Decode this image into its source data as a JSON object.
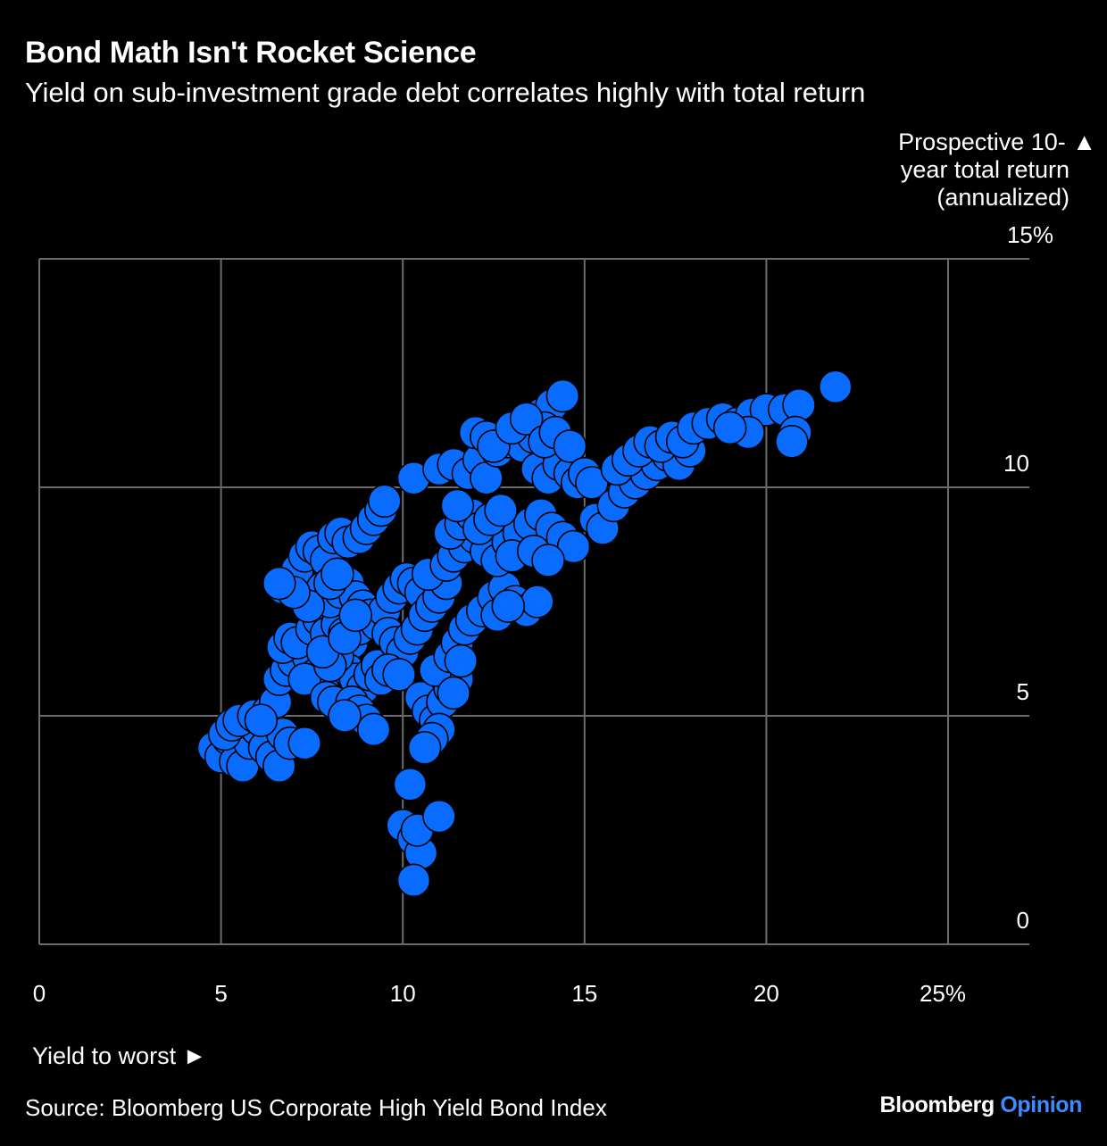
{
  "title": "Bond Math Isn't Rocket Science",
  "subtitle": "Yield on sub-investment grade debt correlates highly with total return",
  "y_axis_label_line1": "Prospective 10- ▲",
  "y_axis_label_line2": "year total return",
  "y_axis_label_line3": "(annualized)",
  "x_axis_label": "Yield to worst ►",
  "source": "Source: Bloomberg US Corporate High Yield Bond Index",
  "brand": {
    "name": "Bloomberg",
    "section": "Opinion"
  },
  "colors": {
    "background": "#000000",
    "point": "#0a6cff",
    "grid": "#6b6b6b",
    "brand_accent": "#3d8bff"
  },
  "chart_data": {
    "type": "scatter",
    "title": "Bond Math Isn't Rocket Science",
    "subtitle": "Yield on sub-investment grade debt correlates highly with total return",
    "xlabel": "Yield to worst",
    "ylabel": "Prospective 10-year total return (annualized)",
    "xlim": [
      0,
      25
    ],
    "ylim": [
      0,
      15
    ],
    "x_ticks": [
      "0",
      "5",
      "10",
      "15",
      "20",
      "25%"
    ],
    "y_ticks": [
      "0",
      "5",
      "10",
      "15%"
    ],
    "grid": true,
    "points": [
      [
        4.8,
        4.3
      ],
      [
        5.0,
        4.1
      ],
      [
        5.2,
        4.5
      ],
      [
        5.4,
        4.0
      ],
      [
        5.6,
        3.9
      ],
      [
        5.8,
        4.4
      ],
      [
        6.0,
        4.7
      ],
      [
        6.2,
        4.3
      ],
      [
        6.4,
        4.1
      ],
      [
        6.6,
        3.9
      ],
      [
        5.1,
        4.6
      ],
      [
        5.3,
        4.8
      ],
      [
        5.5,
        4.9
      ],
      [
        5.9,
        5.0
      ],
      [
        6.3,
        5.1
      ],
      [
        6.5,
        5.3
      ],
      [
        6.7,
        4.6
      ],
      [
        6.9,
        4.4
      ],
      [
        7.3,
        4.4
      ],
      [
        6.1,
        4.9
      ],
      [
        6.6,
        5.8
      ],
      [
        6.8,
        6.0
      ],
      [
        7.0,
        6.2
      ],
      [
        7.2,
        6.5
      ],
      [
        7.4,
        6.3
      ],
      [
        7.6,
        5.9
      ],
      [
        7.8,
        5.6
      ],
      [
        7.3,
        5.8
      ],
      [
        7.9,
        5.4
      ],
      [
        8.1,
        5.3
      ],
      [
        6.7,
        6.5
      ],
      [
        6.9,
        6.7
      ],
      [
        7.1,
        6.6
      ],
      [
        7.5,
        6.9
      ],
      [
        7.7,
        7.1
      ],
      [
        7.9,
        6.8
      ],
      [
        8.2,
        7.0
      ],
      [
        8.4,
        6.8
      ],
      [
        8.6,
        6.6
      ],
      [
        8.8,
        6.9
      ],
      [
        8.5,
        6.0
      ],
      [
        8.7,
        5.8
      ],
      [
        8.9,
        5.6
      ],
      [
        9.1,
        5.9
      ],
      [
        9.3,
        6.1
      ],
      [
        8.6,
        5.3
      ],
      [
        8.8,
        5.1
      ],
      [
        9.0,
        4.9
      ],
      [
        9.2,
        4.7
      ],
      [
        8.4,
        5.0
      ],
      [
        6.7,
        7.8
      ],
      [
        6.9,
        7.9
      ],
      [
        7.1,
        8.2
      ],
      [
        7.3,
        8.5
      ],
      [
        7.5,
        8.7
      ],
      [
        7.7,
        8.6
      ],
      [
        7.9,
        8.4
      ],
      [
        8.1,
        8.9
      ],
      [
        8.3,
        9.0
      ],
      [
        8.5,
        8.8
      ],
      [
        8.8,
        8.9
      ],
      [
        9.0,
        9.1
      ],
      [
        9.2,
        9.3
      ],
      [
        9.4,
        9.5
      ],
      [
        9.5,
        9.7
      ],
      [
        7.6,
        7.6
      ],
      [
        7.8,
        7.8
      ],
      [
        8.0,
        7.5
      ],
      [
        8.3,
        7.7
      ],
      [
        8.5,
        7.9
      ],
      [
        8.7,
        7.6
      ],
      [
        8.9,
        7.4
      ],
      [
        9.1,
        7.2
      ],
      [
        9.3,
        7.0
      ],
      [
        9.5,
        7.3
      ],
      [
        9.7,
        7.6
      ],
      [
        9.9,
        7.8
      ],
      [
        10.1,
        8.0
      ],
      [
        10.3,
        7.9
      ],
      [
        10.5,
        7.7
      ],
      [
        9.6,
        6.8
      ],
      [
        9.8,
        6.6
      ],
      [
        10.0,
        6.4
      ],
      [
        10.2,
        6.7
      ],
      [
        10.4,
        6.9
      ],
      [
        10.6,
        7.2
      ],
      [
        10.8,
        7.4
      ],
      [
        11.0,
        7.6
      ],
      [
        11.2,
        7.9
      ],
      [
        10.7,
        8.1
      ],
      [
        9.4,
        5.8
      ],
      [
        9.6,
        6.0
      ],
      [
        9.9,
        5.9
      ],
      [
        8.2,
        6.3
      ],
      [
        8.0,
        6.1
      ],
      [
        7.8,
        6.4
      ],
      [
        8.4,
        6.7
      ],
      [
        7.4,
        7.4
      ],
      [
        7.0,
        7.7
      ],
      [
        6.6,
        7.9
      ],
      [
        10.5,
        5.4
      ],
      [
        10.7,
        5.1
      ],
      [
        10.9,
        4.9
      ],
      [
        11.1,
        5.3
      ],
      [
        11.3,
        5.6
      ],
      [
        11.5,
        5.8
      ],
      [
        11.0,
        4.7
      ],
      [
        10.8,
        4.5
      ],
      [
        10.6,
        4.3
      ],
      [
        10.9,
        6.0
      ],
      [
        11.3,
        6.3
      ],
      [
        11.5,
        6.6
      ],
      [
        11.7,
        6.9
      ],
      [
        11.9,
        7.1
      ],
      [
        11.6,
        6.2
      ],
      [
        11.4,
        5.5
      ],
      [
        12.2,
        7.3
      ],
      [
        12.5,
        7.6
      ],
      [
        12.8,
        7.8
      ],
      [
        13.1,
        7.5
      ],
      [
        13.4,
        7.3
      ],
      [
        13.7,
        7.5
      ],
      [
        12.6,
        7.2
      ],
      [
        12.9,
        7.4
      ],
      [
        11.2,
        8.3
      ],
      [
        11.4,
        8.5
      ],
      [
        11.7,
        8.7
      ],
      [
        12.0,
        8.9
      ],
      [
        12.3,
        8.6
      ],
      [
        12.6,
        8.4
      ],
      [
        12.9,
        8.8
      ],
      [
        13.2,
        9.0
      ],
      [
        13.5,
        9.2
      ],
      [
        13.8,
        9.4
      ],
      [
        14.1,
        9.1
      ],
      [
        14.4,
        8.9
      ],
      [
        14.7,
        8.7
      ],
      [
        13.0,
        8.5
      ],
      [
        13.6,
        8.6
      ],
      [
        14.0,
        8.4
      ],
      [
        11.3,
        9.0
      ],
      [
        11.6,
        9.2
      ],
      [
        11.9,
        9.4
      ],
      [
        12.1,
        9.1
      ],
      [
        12.4,
        9.3
      ],
      [
        12.7,
        9.5
      ],
      [
        11.5,
        9.6
      ],
      [
        10.3,
        10.2
      ],
      [
        11.0,
        10.4
      ],
      [
        11.4,
        10.5
      ],
      [
        11.8,
        10.3
      ],
      [
        12.1,
        10.6
      ],
      [
        12.3,
        10.2
      ],
      [
        12.6,
        10.8
      ],
      [
        12.9,
        11.0
      ],
      [
        13.2,
        11.2
      ],
      [
        13.5,
        11.4
      ],
      [
        13.8,
        11.6
      ],
      [
        14.1,
        11.8
      ],
      [
        14.4,
        12.0
      ],
      [
        13.3,
        10.9
      ],
      [
        13.6,
        11.1
      ],
      [
        13.9,
        11.3
      ],
      [
        14.2,
        10.8
      ],
      [
        14.5,
        10.6
      ],
      [
        13.7,
        10.4
      ],
      [
        14.0,
        10.2
      ],
      [
        14.3,
        10.5
      ],
      [
        14.6,
        10.3
      ],
      [
        14.8,
        10.1
      ],
      [
        12.0,
        11.2
      ],
      [
        12.3,
        11.1
      ],
      [
        12.5,
        10.9
      ],
      [
        13.0,
        11.3
      ],
      [
        13.4,
        11.5
      ],
      [
        13.9,
        11.0
      ],
      [
        14.2,
        11.2
      ],
      [
        14.6,
        10.9
      ],
      [
        15.0,
        10.3
      ],
      [
        15.2,
        10.1
      ],
      [
        15.3,
        9.3
      ],
      [
        15.5,
        9.1
      ],
      [
        15.8,
        9.6
      ],
      [
        16.1,
        9.9
      ],
      [
        16.4,
        10.1
      ],
      [
        16.7,
        10.3
      ],
      [
        17.0,
        10.5
      ],
      [
        17.3,
        10.7
      ],
      [
        17.6,
        10.5
      ],
      [
        17.9,
        10.8
      ],
      [
        15.9,
        10.4
      ],
      [
        16.2,
        10.6
      ],
      [
        16.5,
        10.8
      ],
      [
        16.8,
        11.0
      ],
      [
        17.1,
        10.9
      ],
      [
        17.4,
        11.1
      ],
      [
        17.7,
        11.0
      ],
      [
        18.0,
        11.3
      ],
      [
        18.4,
        11.4
      ],
      [
        18.8,
        11.5
      ],
      [
        19.2,
        11.4
      ],
      [
        19.6,
        11.6
      ],
      [
        20.0,
        11.7
      ],
      [
        20.5,
        11.7
      ],
      [
        20.9,
        11.8
      ],
      [
        20.8,
        11.2
      ],
      [
        20.7,
        11.0
      ],
      [
        19.5,
        11.2
      ],
      [
        19.0,
        11.3
      ],
      [
        21.9,
        12.2
      ],
      [
        10.2,
        3.5
      ],
      [
        10.0,
        2.6
      ],
      [
        10.3,
        2.3
      ],
      [
        10.5,
        2.0
      ],
      [
        10.4,
        2.5
      ],
      [
        11.0,
        2.8
      ],
      [
        10.3,
        1.4
      ],
      [
        8.0,
        7.9
      ],
      [
        8.2,
        8.1
      ],
      [
        8.7,
        7.2
      ]
    ]
  }
}
